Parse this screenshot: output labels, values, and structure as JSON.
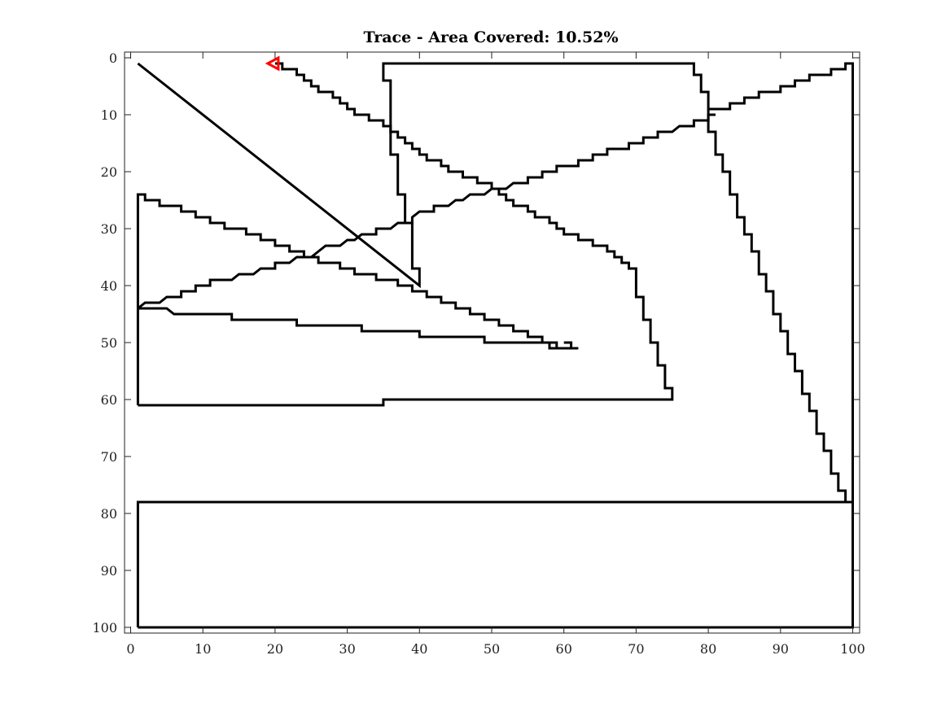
{
  "chart_data": {
    "type": "line",
    "title": "Trace - Area Covered: 10.52%",
    "xlabel": "",
    "ylabel": "",
    "xlim": [
      0,
      100
    ],
    "ylim": [
      0,
      100
    ],
    "y_reversed": true,
    "grid": false,
    "legend": "none",
    "xticks": [
      0,
      10,
      20,
      30,
      40,
      50,
      60,
      70,
      80,
      90,
      100
    ],
    "yticks": [
      0,
      10,
      20,
      30,
      40,
      50,
      60,
      70,
      80,
      90,
      100
    ],
    "line_color": "#000000",
    "marker_color": "#ff0000",
    "marker": {
      "shape": "left-triangle",
      "x": 20,
      "y": 1
    },
    "series": [
      {
        "points": [
          [
            1,
            100
          ],
          [
            100,
            100
          ],
          [
            100,
            78
          ],
          [
            1,
            78
          ],
          [
            1,
            100
          ]
        ]
      },
      {
        "points": [
          [
            1,
            61
          ],
          [
            35,
            61
          ],
          [
            35,
            60
          ],
          [
            75,
            60
          ],
          [
            75,
            58
          ],
          [
            74,
            58
          ],
          [
            74,
            54
          ],
          [
            73,
            54
          ],
          [
            73,
            50
          ],
          [
            72,
            50
          ],
          [
            72,
            46
          ],
          [
            71,
            46
          ],
          [
            71,
            42
          ],
          [
            70,
            42
          ],
          [
            70,
            37
          ],
          [
            69,
            37
          ],
          [
            69,
            36
          ],
          [
            68,
            36
          ],
          [
            68,
            35
          ],
          [
            67,
            35
          ],
          [
            67,
            34
          ],
          [
            66,
            34
          ],
          [
            66,
            33
          ],
          [
            64,
            33
          ],
          [
            64,
            32
          ],
          [
            62,
            32
          ],
          [
            62,
            31
          ],
          [
            60,
            31
          ],
          [
            60,
            30
          ],
          [
            59,
            30
          ],
          [
            59,
            29
          ],
          [
            58,
            29
          ],
          [
            58,
            28
          ],
          [
            56,
            28
          ],
          [
            56,
            27
          ],
          [
            55,
            27
          ],
          [
            55,
            26
          ],
          [
            53,
            26
          ],
          [
            53,
            25
          ],
          [
            52,
            25
          ],
          [
            52,
            24
          ],
          [
            51,
            24
          ],
          [
            51,
            23
          ],
          [
            50,
            23
          ],
          [
            50,
            22
          ],
          [
            48,
            22
          ],
          [
            48,
            21
          ],
          [
            46,
            21
          ],
          [
            46,
            20
          ],
          [
            44,
            20
          ],
          [
            44,
            19
          ],
          [
            43,
            19
          ],
          [
            43,
            18
          ],
          [
            41,
            18
          ],
          [
            41,
            17
          ],
          [
            40,
            17
          ],
          [
            40,
            16
          ],
          [
            39,
            16
          ],
          [
            39,
            15
          ],
          [
            38,
            15
          ],
          [
            38,
            14
          ],
          [
            37,
            14
          ],
          [
            37,
            13
          ],
          [
            36,
            13
          ],
          [
            36,
            12
          ],
          [
            35,
            12
          ],
          [
            35,
            11
          ],
          [
            33,
            11
          ],
          [
            33,
            10
          ],
          [
            31,
            10
          ],
          [
            31,
            9
          ],
          [
            30,
            9
          ],
          [
            30,
            8
          ],
          [
            29,
            8
          ],
          [
            29,
            7
          ],
          [
            28,
            7
          ],
          [
            28,
            6
          ],
          [
            26,
            6
          ],
          [
            26,
            5
          ],
          [
            25,
            5
          ],
          [
            25,
            4
          ],
          [
            24,
            4
          ],
          [
            24,
            3
          ],
          [
            23,
            3
          ],
          [
            23,
            2
          ],
          [
            21,
            2
          ],
          [
            21,
            1
          ],
          [
            20,
            1
          ]
        ]
      },
      {
        "points": [
          [
            1,
            61
          ],
          [
            1,
            24
          ],
          [
            2,
            24
          ],
          [
            2,
            25
          ],
          [
            4,
            25
          ],
          [
            4,
            26
          ],
          [
            7,
            26
          ],
          [
            7,
            27
          ],
          [
            9,
            27
          ],
          [
            9,
            28
          ],
          [
            11,
            28
          ],
          [
            11,
            29
          ],
          [
            13,
            29
          ],
          [
            13,
            30
          ],
          [
            16,
            30
          ],
          [
            16,
            31
          ],
          [
            18,
            31
          ],
          [
            18,
            32
          ],
          [
            20,
            32
          ],
          [
            20,
            33
          ],
          [
            22,
            33
          ],
          [
            22,
            34
          ],
          [
            24,
            34
          ],
          [
            24,
            35
          ],
          [
            26,
            35
          ],
          [
            26,
            36
          ],
          [
            29,
            36
          ],
          [
            29,
            37
          ],
          [
            31,
            37
          ],
          [
            31,
            38
          ],
          [
            34,
            38
          ],
          [
            34,
            39
          ],
          [
            37,
            39
          ],
          [
            37,
            40
          ],
          [
            39,
            40
          ],
          [
            39,
            41
          ],
          [
            41,
            41
          ],
          [
            41,
            42
          ],
          [
            43,
            42
          ],
          [
            43,
            43
          ],
          [
            45,
            43
          ],
          [
            45,
            44
          ],
          [
            47,
            44
          ],
          [
            47,
            45
          ],
          [
            49,
            45
          ],
          [
            49,
            46
          ],
          [
            51,
            46
          ],
          [
            51,
            47
          ],
          [
            53,
            47
          ],
          [
            53,
            48
          ],
          [
            55,
            48
          ],
          [
            55,
            49
          ],
          [
            57,
            49
          ],
          [
            57,
            50
          ],
          [
            59,
            50
          ],
          [
            59,
            51
          ],
          [
            61,
            51
          ],
          [
            61,
            50
          ],
          [
            60,
            50
          ]
        ]
      },
      {
        "points": [
          [
            1,
            44
          ],
          [
            5,
            44
          ],
          [
            6,
            45
          ],
          [
            14,
            45
          ],
          [
            14,
            46
          ],
          [
            23,
            46
          ],
          [
            23,
            47
          ],
          [
            32,
            47
          ],
          [
            32,
            48
          ],
          [
            40,
            48
          ],
          [
            40,
            49
          ],
          [
            49,
            49
          ],
          [
            49,
            50
          ],
          [
            58,
            50
          ],
          [
            58,
            51
          ],
          [
            62,
            51
          ]
        ]
      },
      {
        "points": [
          [
            1,
            44
          ],
          [
            2,
            43
          ],
          [
            4,
            43
          ],
          [
            5,
            42
          ],
          [
            7,
            42
          ],
          [
            7,
            41
          ],
          [
            9,
            41
          ],
          [
            9,
            40
          ],
          [
            11,
            40
          ],
          [
            11,
            39
          ],
          [
            14,
            39
          ],
          [
            15,
            38
          ],
          [
            17,
            38
          ],
          [
            18,
            37
          ],
          [
            20,
            37
          ],
          [
            20,
            36
          ],
          [
            22,
            36
          ],
          [
            23,
            35
          ],
          [
            25,
            35
          ],
          [
            26,
            34
          ],
          [
            27,
            33
          ],
          [
            29,
            33
          ],
          [
            30,
            32
          ],
          [
            31,
            32
          ],
          [
            32,
            31
          ],
          [
            34,
            31
          ],
          [
            34,
            30
          ],
          [
            36,
            30
          ],
          [
            37,
            29
          ],
          [
            39,
            29
          ],
          [
            39,
            28
          ],
          [
            40,
            27
          ],
          [
            42,
            27
          ],
          [
            42,
            26
          ],
          [
            44,
            26
          ],
          [
            45,
            25
          ],
          [
            46,
            25
          ],
          [
            47,
            24
          ],
          [
            49,
            24
          ],
          [
            50,
            23
          ],
          [
            52,
            23
          ],
          [
            53,
            22
          ],
          [
            55,
            22
          ],
          [
            55,
            21
          ],
          [
            57,
            21
          ],
          [
            57,
            20
          ],
          [
            59,
            20
          ],
          [
            59,
            19
          ],
          [
            62,
            19
          ],
          [
            62,
            18
          ],
          [
            64,
            18
          ],
          [
            64,
            17
          ],
          [
            66,
            17
          ],
          [
            66,
            16
          ],
          [
            69,
            16
          ],
          [
            69,
            15
          ],
          [
            71,
            15
          ],
          [
            71,
            14
          ],
          [
            73,
            14
          ],
          [
            73,
            13
          ],
          [
            75,
            13
          ],
          [
            76,
            12
          ],
          [
            78,
            12
          ],
          [
            78,
            11
          ],
          [
            80,
            11
          ],
          [
            80,
            10
          ],
          [
            81,
            10
          ]
        ]
      },
      {
        "points": [
          [
            1,
            1
          ],
          [
            40,
            40
          ],
          [
            40,
            37
          ],
          [
            39,
            37
          ],
          [
            39,
            29
          ],
          [
            38,
            29
          ],
          [
            38,
            24
          ],
          [
            37,
            24
          ],
          [
            37,
            17
          ],
          [
            36,
            17
          ],
          [
            36,
            4
          ],
          [
            35,
            4
          ],
          [
            35,
            1
          ],
          [
            78,
            1
          ],
          [
            78,
            3
          ],
          [
            79,
            3
          ],
          [
            79,
            6
          ],
          [
            80,
            6
          ],
          [
            80,
            9
          ],
          [
            83,
            9
          ],
          [
            83,
            8
          ],
          [
            85,
            8
          ],
          [
            85,
            7
          ],
          [
            87,
            7
          ],
          [
            87,
            6
          ],
          [
            90,
            6
          ],
          [
            90,
            5
          ],
          [
            92,
            5
          ],
          [
            92,
            4
          ],
          [
            94,
            4
          ],
          [
            94,
            3
          ],
          [
            97,
            3
          ],
          [
            97,
            2
          ],
          [
            99,
            2
          ],
          [
            99,
            1
          ],
          [
            100,
            1
          ],
          [
            100,
            78
          ],
          [
            99,
            78
          ],
          [
            99,
            76
          ],
          [
            98,
            76
          ],
          [
            98,
            73
          ],
          [
            97,
            73
          ],
          [
            97,
            69
          ],
          [
            96,
            69
          ],
          [
            96,
            66
          ],
          [
            95,
            66
          ],
          [
            95,
            62
          ],
          [
            94,
            62
          ],
          [
            94,
            59
          ],
          [
            93,
            59
          ],
          [
            93,
            55
          ],
          [
            92,
            55
          ],
          [
            92,
            52
          ],
          [
            91,
            52
          ],
          [
            91,
            48
          ],
          [
            90,
            48
          ],
          [
            90,
            45
          ],
          [
            89,
            45
          ],
          [
            89,
            41
          ],
          [
            88,
            41
          ],
          [
            88,
            38
          ],
          [
            87,
            38
          ],
          [
            87,
            34
          ],
          [
            86,
            34
          ],
          [
            86,
            31
          ],
          [
            85,
            31
          ],
          [
            85,
            28
          ],
          [
            84,
            28
          ],
          [
            84,
            24
          ],
          [
            83,
            24
          ],
          [
            83,
            20
          ],
          [
            82,
            20
          ],
          [
            82,
            17
          ],
          [
            81,
            17
          ],
          [
            81,
            13
          ],
          [
            80,
            13
          ],
          [
            80,
            9
          ]
        ]
      }
    ]
  }
}
